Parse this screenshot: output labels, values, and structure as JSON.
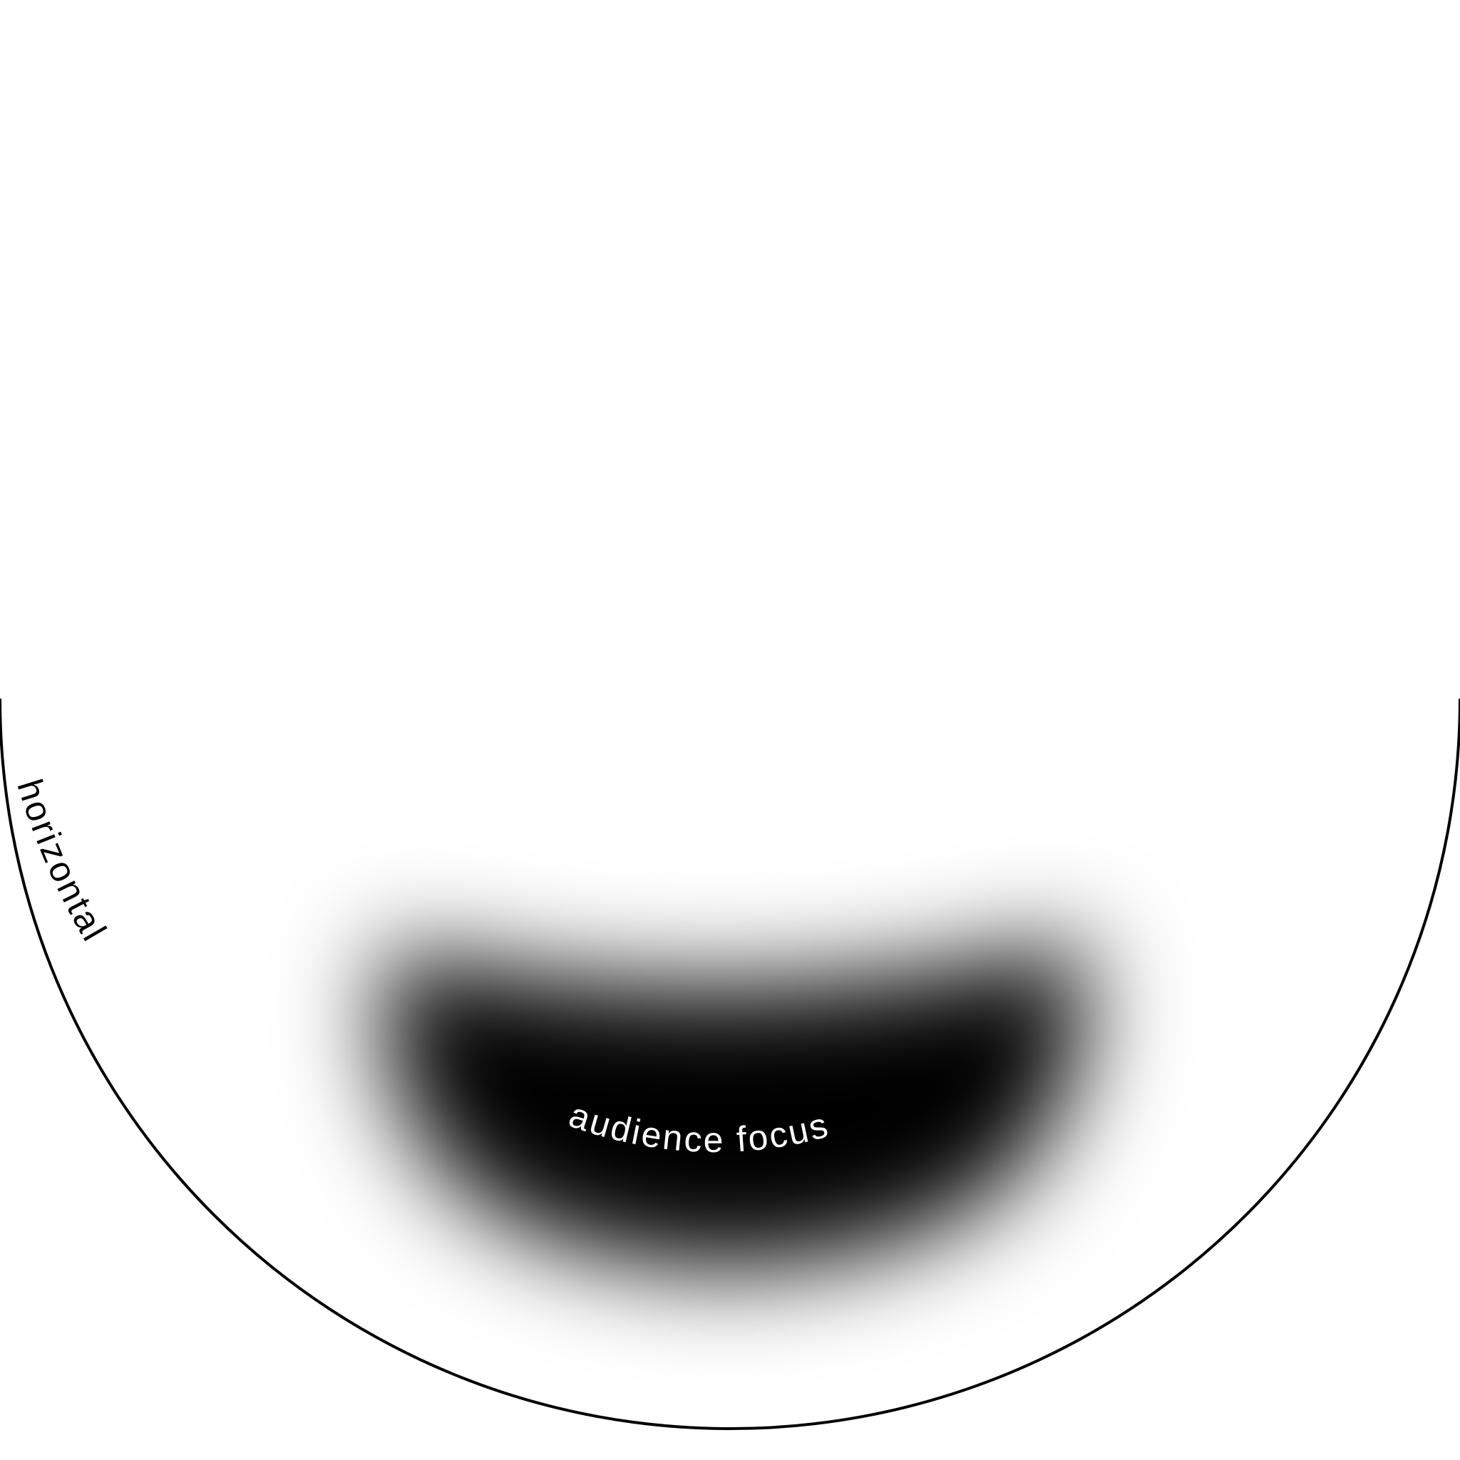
{
  "diagram": {
    "dome_label": "horizontal",
    "focus_label": "audience focus",
    "outline_color": "#000000",
    "focus_color": "#000000",
    "focus_text_color": "#ffffff",
    "background_color": "#ffffff"
  }
}
